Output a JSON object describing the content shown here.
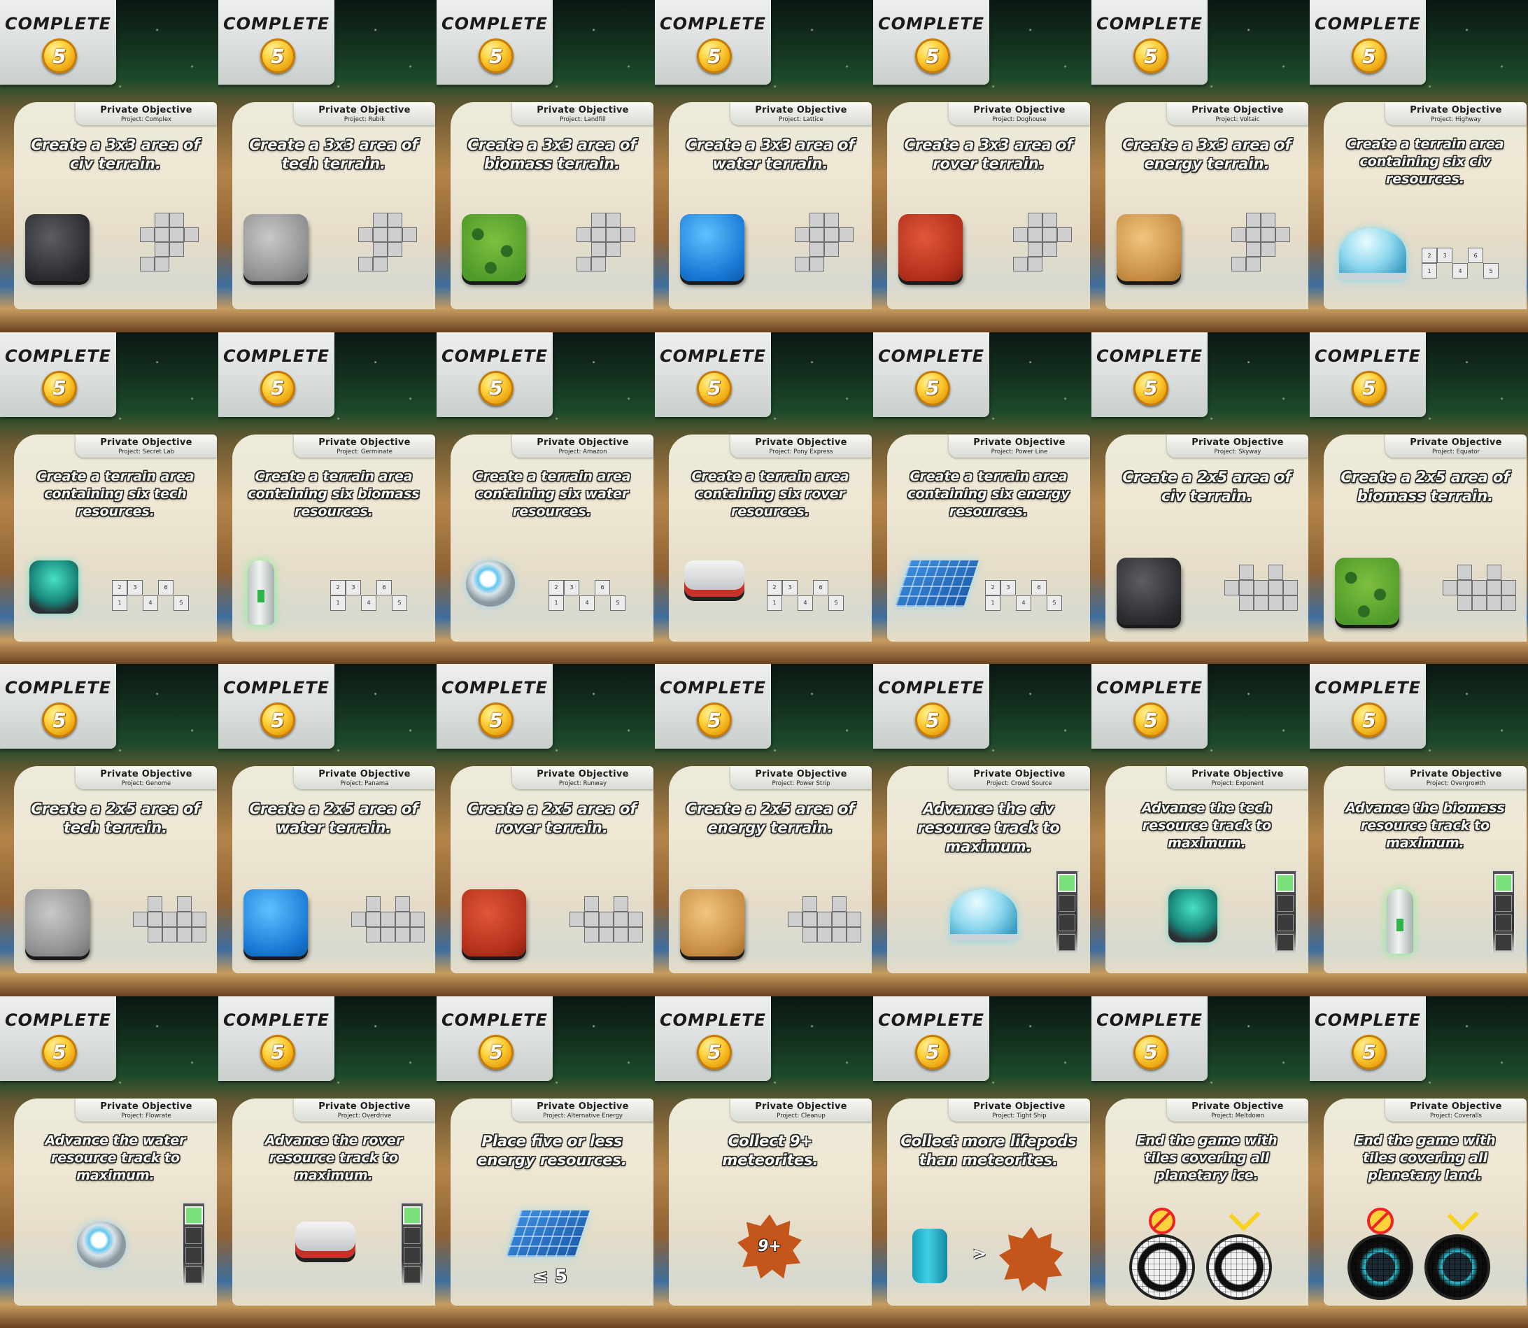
{
  "common": {
    "complete_label": "COMPLETE",
    "reward_value": "5",
    "header_title": "Private Objective"
  },
  "cards": [
    {
      "project": "Project: Complex",
      "text": "Create a 3x3 area of civ terrain.",
      "visual": "tile-3x3",
      "tile": "civ"
    },
    {
      "project": "Project: Rubik",
      "text": "Create a 3x3 area of tech terrain.",
      "visual": "tile-3x3",
      "tile": "tech"
    },
    {
      "project": "Project: Landfill",
      "text": "Create a 3x3 area of biomass terrain.",
      "visual": "tile-3x3",
      "tile": "biomass"
    },
    {
      "project": "Project: Lattice",
      "text": "Create a 3x3 area of water terrain.",
      "visual": "tile-3x3",
      "tile": "water"
    },
    {
      "project": "Project: Doghouse",
      "text": "Create a 3x3 area of rover terrain.",
      "visual": "tile-3x3",
      "tile": "rover"
    },
    {
      "project": "Project: Voltaic",
      "text": "Create a 3x3 area of energy terrain.",
      "visual": "tile-3x3",
      "tile": "energy"
    },
    {
      "project": "Project: Highway",
      "text": "Create a terrain area containing six civ resources.",
      "visual": "resource-six",
      "resource": "dome"
    },
    {
      "project": "Project: Secret Lab",
      "text": "Create a terrain area containing six tech resources.",
      "visual": "resource-six",
      "resource": "robot"
    },
    {
      "project": "Project: Germinate",
      "text": "Create a terrain area containing six biomass resources.",
      "visual": "resource-six",
      "resource": "tower"
    },
    {
      "project": "Project: Amazon",
      "text": "Create a terrain area containing six water resources.",
      "visual": "resource-six",
      "resource": "orb"
    },
    {
      "project": "Project: Pony Express",
      "text": "Create a terrain area containing six rover resources.",
      "visual": "resource-six",
      "resource": "car"
    },
    {
      "project": "Project: Power Line",
      "text": "Create a terrain area containing six energy resources.",
      "visual": "resource-six",
      "resource": "solar"
    },
    {
      "project": "Project: Skyway",
      "text": "Create a 2x5 area of civ terrain.",
      "visual": "tile-2x5",
      "tile": "civ"
    },
    {
      "project": "Project: Equator",
      "text": "Create a 2x5 area of biomass terrain.",
      "visual": "tile-2x5",
      "tile": "biomass"
    },
    {
      "project": "Project: Genome",
      "text": "Create a 2x5 area of tech terrain.",
      "visual": "tile-2x5",
      "tile": "tech"
    },
    {
      "project": "Project: Panama",
      "text": "Create a 2x5 area of water terrain.",
      "visual": "tile-2x5",
      "tile": "water"
    },
    {
      "project": "Project: Runway",
      "text": "Create a 2x5 area of rover terrain.",
      "visual": "tile-2x5",
      "tile": "rover"
    },
    {
      "project": "Project: Power Strip",
      "text": "Create a 2x5 area of energy terrain.",
      "visual": "tile-2x5",
      "tile": "energy"
    },
    {
      "project": "Project: Crowd Source",
      "text": "Advance the civ resource track to maximum.",
      "visual": "track",
      "resource": "dome"
    },
    {
      "project": "Project: Exponent",
      "text": "Advance the tech resource track to maximum.",
      "visual": "track",
      "resource": "robot"
    },
    {
      "project": "Project: Overgrowth",
      "text": "Advance the biomass resource track to maximum.",
      "visual": "track",
      "resource": "tower"
    },
    {
      "project": "Project: Flowrate",
      "text": "Advance the water resource track to maximum.",
      "visual": "track",
      "resource": "orb"
    },
    {
      "project": "Project: Overdrive",
      "text": "Advance the rover resource track to maximum.",
      "visual": "track",
      "resource": "car"
    },
    {
      "project": "Project: Alternative Energy",
      "text": "Place five or less energy resources.",
      "visual": "max-energy",
      "resource": "solar",
      "label": "≤ 5"
    },
    {
      "project": "Project: Cleanup",
      "text": "Collect 9+ meteorites.",
      "visual": "meteorites",
      "label": "9+"
    },
    {
      "project": "Project: Tight Ship",
      "text": "Collect more lifepods than meteorites.",
      "visual": "lifepods",
      "label": ">"
    },
    {
      "project": "Project: Meltdown",
      "text": "End the game with tiles covering all planetary ice.",
      "visual": "planet-ice"
    },
    {
      "project": "Project: Coveralls",
      "text": "End the game with tiles covering all planetary land.",
      "visual": "planet-land"
    }
  ]
}
